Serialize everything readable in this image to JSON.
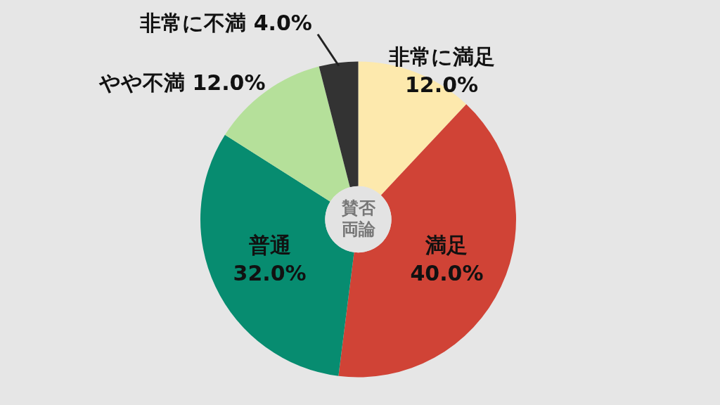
{
  "chart_data": {
    "type": "donut",
    "title": "賛否両論",
    "categories": [
      "非常に満足",
      "満足",
      "普通",
      "やや不満",
      "非常に不満"
    ],
    "values": [
      12,
      40,
      32,
      12,
      4
    ],
    "value_labels": [
      "12.0%",
      "40.0%",
      "32.0%",
      "12.0%",
      "4.0%"
    ],
    "colors": [
      "#fde9ad",
      "#d04336",
      "#078c70",
      "#b5e09a",
      "#333333"
    ],
    "legend": false
  }
}
